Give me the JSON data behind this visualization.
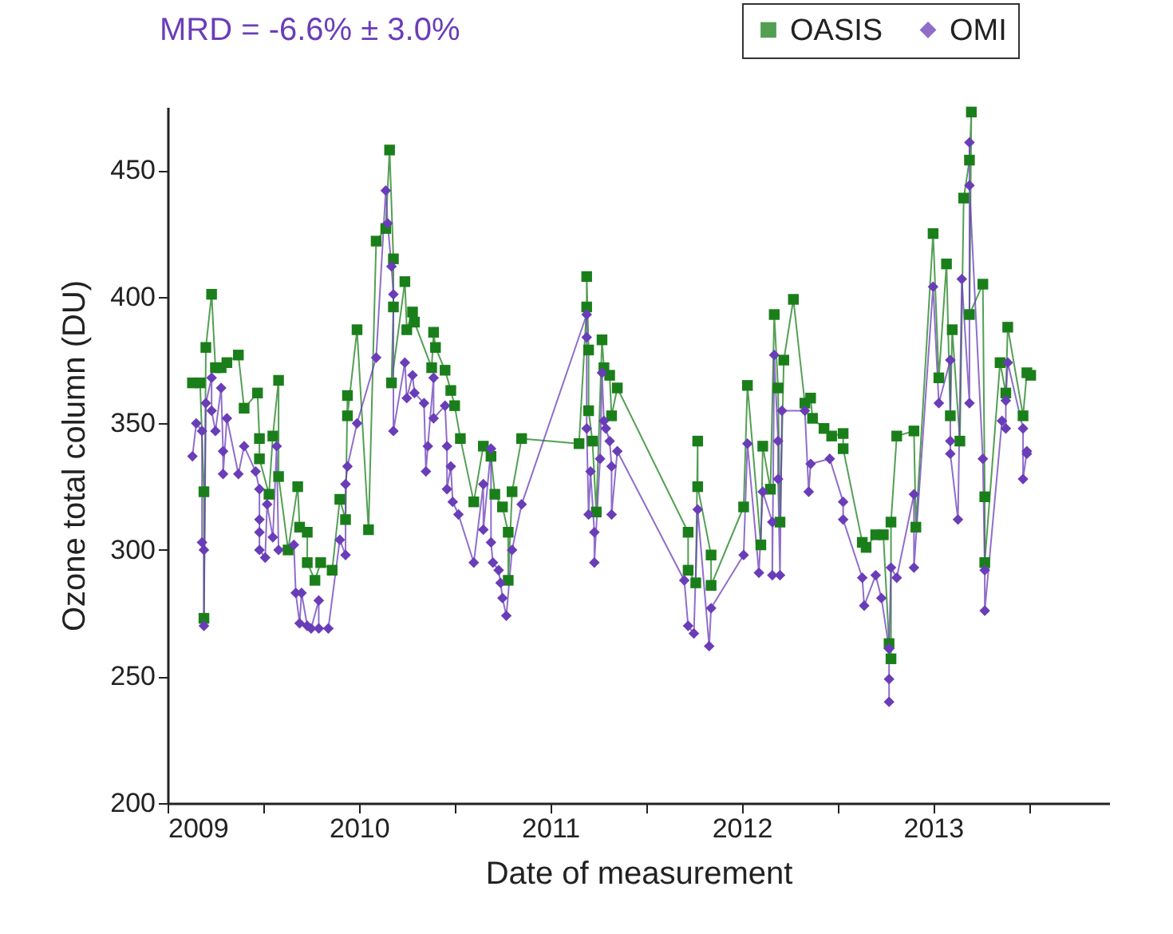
{
  "chart_data": {
    "type": "line",
    "xlabel": "Date of measurement",
    "ylabel": "Ozone total column (DU)",
    "annotations": [
      "MRD = -6.6% ± 3.0%"
    ],
    "xlim": [
      2009,
      2013.92
    ],
    "xticks": [
      2009,
      {
        "value": 2009.5,
        "label": null
      },
      2010,
      {
        "value": 2010.5,
        "label": null
      },
      2011,
      {
        "value": 2011.5,
        "label": null
      },
      2012,
      {
        "value": 2012.5,
        "label": null
      },
      2013,
      {
        "value": 2013.5,
        "label": null
      }
    ],
    "ylim": [
      200,
      475
    ],
    "yticks": [
      200,
      250,
      300,
      350,
      400,
      450
    ],
    "grid": false,
    "legend": "top right",
    "line_style": "solid",
    "series": [
      {
        "name": "OASIS",
        "color": "#1a7f1a",
        "marker": "square",
        "x": [
          2009.13,
          2009.17,
          2009.19,
          2009.19,
          2009.2,
          2009.23,
          2009.25,
          2009.28,
          2009.31,
          2009.37,
          2009.4,
          2009.47,
          2009.48,
          2009.48,
          2009.53,
          2009.55,
          2009.58,
          2009.58,
          2009.63,
          2009.68,
          2009.69,
          2009.73,
          2009.73,
          2009.77,
          2009.8,
          2009.86,
          2009.9,
          2009.93,
          2009.94,
          2009.94,
          2009.99,
          2010.05,
          2010.09,
          2010.14,
          2010.16,
          2010.18,
          2010.18,
          2010.17,
          2010.24,
          2010.25,
          2010.28,
          2010.29,
          2010.38,
          2010.39,
          2010.4,
          2010.45,
          2010.48,
          2010.5,
          2010.53,
          2010.6,
          2010.65,
          2010.69,
          2010.71,
          2010.75,
          2010.78,
          2010.78,
          2010.8,
          2010.85,
          2011.15,
          2011.19,
          2011.19,
          2011.2,
          2011.2,
          2011.22,
          2011.24,
          2011.27,
          2011.28,
          2011.31,
          2011.32,
          2011.35,
          2011.72,
          2011.72,
          2011.76,
          2011.77,
          2011.77,
          2011.84,
          2011.84,
          2012.01,
          2012.03,
          2012.1,
          2012.11,
          2012.15,
          2012.17,
          2012.19,
          2012.2,
          2012.22,
          2012.27,
          2012.33,
          2012.36,
          2012.37,
          2012.43,
          2012.47,
          2012.53,
          2012.53,
          2012.63,
          2012.65,
          2012.7,
          2012.74,
          2012.77,
          2012.78,
          2012.78,
          2012.81,
          2012.9,
          2012.91,
          2013.0,
          2013.03,
          2013.07,
          2013.09,
          2013.1,
          2013.14,
          2013.16,
          2013.19,
          2013.2,
          2013.19,
          2013.26,
          2013.27,
          2013.27,
          2013.35,
          2013.38,
          2013.39,
          2013.47,
          2013.49,
          2013.51
        ],
        "values": [
          366,
          366,
          323,
          273,
          380,
          401,
          372,
          372,
          374,
          377,
          356,
          362,
          344,
          336,
          322,
          345,
          367,
          329,
          300,
          325,
          309,
          307,
          295,
          288,
          295,
          292,
          320,
          312,
          361,
          353,
          387,
          308,
          422,
          427,
          458,
          415,
          396,
          366,
          406,
          387,
          394,
          390,
          372,
          386,
          380,
          371,
          363,
          357,
          344,
          319,
          341,
          337,
          322,
          317,
          307,
          288,
          323,
          344,
          342,
          396,
          408,
          379,
          355,
          343,
          315,
          383,
          372,
          369,
          353,
          364,
          307,
          292,
          287,
          343,
          325,
          298,
          286,
          317,
          365,
          302,
          341,
          324,
          393,
          364,
          311,
          375,
          399,
          358,
          360,
          352,
          348,
          345,
          346,
          340,
          303,
          301,
          306,
          306,
          263,
          257,
          311,
          345,
          347,
          309,
          425,
          368,
          413,
          353,
          387,
          343,
          439,
          454,
          473,
          393,
          405,
          321,
          295,
          374,
          362,
          388,
          353,
          370,
          369
        ]
      },
      {
        "name": "OMI",
        "color": "#6a3db8",
        "marker": "diamond",
        "x": [
          2009.13,
          2009.15,
          2009.18,
          2009.18,
          2009.19,
          2009.19,
          2009.2,
          2009.23,
          2009.23,
          2009.25,
          2009.28,
          2009.29,
          2009.29,
          2009.31,
          2009.37,
          2009.4,
          2009.46,
          2009.48,
          2009.48,
          2009.48,
          2009.48,
          2009.51,
          2009.52,
          2009.55,
          2009.57,
          2009.58,
          2009.66,
          2009.67,
          2009.69,
          2009.7,
          2009.73,
          2009.75,
          2009.79,
          2009.79,
          2009.84,
          2009.9,
          2009.93,
          2009.93,
          2009.94,
          2009.99,
          2010.09,
          2010.14,
          2010.15,
          2010.17,
          2010.18,
          2010.18,
          2010.24,
          2010.25,
          2010.28,
          2010.29,
          2010.34,
          2010.35,
          2010.36,
          2010.39,
          2010.39,
          2010.45,
          2010.46,
          2010.46,
          2010.48,
          2010.49,
          2010.52,
          2010.6,
          2010.65,
          2010.65,
          2010.69,
          2010.69,
          2010.7,
          2010.73,
          2010.74,
          2010.75,
          2010.77,
          2010.8,
          2010.85,
          2011.19,
          2011.19,
          2011.19,
          2011.2,
          2011.21,
          2011.23,
          2011.23,
          2011.26,
          2011.27,
          2011.28,
          2011.29,
          2011.31,
          2011.32,
          2011.32,
          2011.35,
          2011.7,
          2011.72,
          2011.75,
          2011.77,
          2011.83,
          2011.84,
          2012.01,
          2012.03,
          2012.09,
          2012.11,
          2012.16,
          2012.16,
          2012.17,
          2012.19,
          2012.19,
          2012.2,
          2012.21,
          2012.33,
          2012.35,
          2012.36,
          2012.46,
          2012.53,
          2012.53,
          2012.63,
          2012.64,
          2012.7,
          2012.73,
          2012.77,
          2012.77,
          2012.77,
          2012.77,
          2012.78,
          2012.81,
          2012.9,
          2012.9,
          2013.0,
          2013.03,
          2013.09,
          2013.09,
          2013.09,
          2013.13,
          2013.15,
          2013.19,
          2013.19,
          2013.19,
          2013.26,
          2013.27,
          2013.27,
          2013.36,
          2013.38,
          2013.38,
          2013.39,
          2013.47,
          2013.47,
          2013.49,
          2013.49
        ],
        "values": [
          337,
          350,
          347,
          303,
          300,
          270,
          358,
          368,
          355,
          347,
          364,
          339,
          330,
          352,
          330,
          341,
          331,
          324,
          312,
          307,
          300,
          297,
          318,
          305,
          341,
          300,
          302,
          283,
          271,
          283,
          270,
          269,
          280,
          269,
          269,
          304,
          298,
          326,
          333,
          350,
          376,
          442,
          429,
          412,
          401,
          347,
          374,
          360,
          369,
          362,
          358,
          331,
          341,
          368,
          352,
          357,
          341,
          324,
          333,
          319,
          314,
          295,
          326,
          308,
          340,
          303,
          295,
          292,
          287,
          281,
          274,
          300,
          318,
          393,
          384,
          348,
          314,
          331,
          307,
          295,
          336,
          370,
          351,
          348,
          343,
          333,
          314,
          339,
          288,
          270,
          267,
          316,
          262,
          277,
          298,
          342,
          291,
          323,
          311,
          290,
          377,
          343,
          328,
          290,
          355,
          355,
          323,
          334,
          336,
          319,
          312,
          289,
          278,
          290,
          281,
          261,
          249,
          240,
          261,
          293,
          289,
          322,
          293,
          404,
          358,
          375,
          343,
          338,
          312,
          407,
          358,
          461,
          444,
          336,
          292,
          276,
          351,
          348,
          359,
          374,
          348,
          328,
          339,
          338
        ]
      }
    ]
  }
}
